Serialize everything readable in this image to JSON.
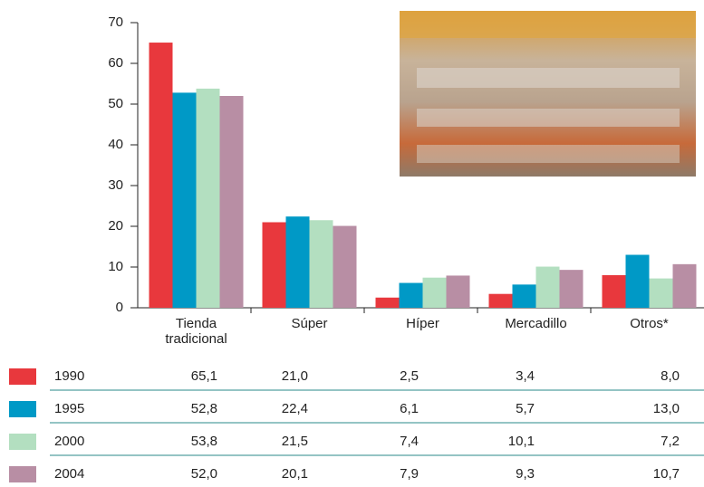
{
  "chart_data": {
    "type": "bar",
    "categories": [
      "Tienda tradicional",
      "Súper",
      "Híper",
      "Mercadillo",
      "Otros*"
    ],
    "series": [
      {
        "name": "1990",
        "color": "#e8383d",
        "values": [
          65.1,
          21.0,
          2.5,
          3.4,
          8.0
        ],
        "value_labels": [
          "65,1",
          "21,0",
          "2,5",
          "3,4",
          "8,0"
        ]
      },
      {
        "name": "1995",
        "color": "#0099c6",
        "values": [
          52.8,
          22.4,
          6.1,
          5.7,
          13.0
        ],
        "value_labels": [
          "52,8",
          "22,4",
          "6,1",
          "5,7",
          "13,0"
        ]
      },
      {
        "name": "2000",
        "color": "#b3dfc0",
        "values": [
          53.8,
          21.5,
          7.4,
          10.1,
          7.2
        ],
        "value_labels": [
          "53,8",
          "21,5",
          "7,4",
          "10,1",
          "7,2"
        ]
      },
      {
        "name": "2004",
        "color": "#b88ea4",
        "values": [
          52.0,
          20.1,
          7.9,
          9.3,
          10.7
        ],
        "value_labels": [
          "52,0",
          "20,1",
          "7,9",
          "9,3",
          "10,7"
        ]
      }
    ],
    "ylim": [
      0,
      70
    ],
    "yticks": [
      0,
      10,
      20,
      30,
      40,
      50,
      60,
      70
    ],
    "grid": false
  }
}
